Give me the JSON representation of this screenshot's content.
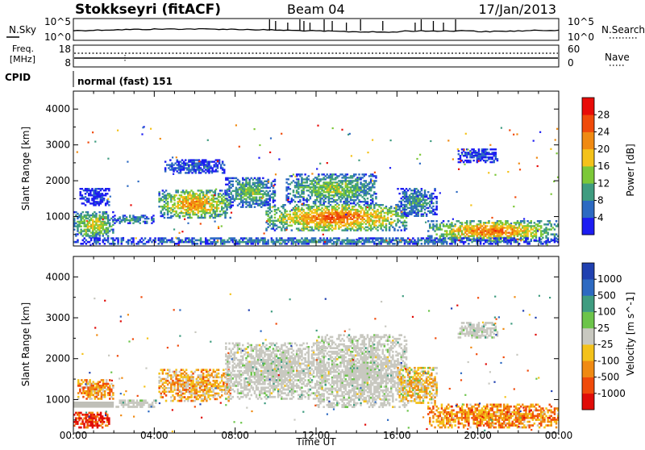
{
  "header": {
    "station": "Stokkseyri (fitACF)",
    "beam": "Beam 04",
    "date": "17/Jan/2013"
  },
  "noise_panel": {
    "left_label": "N.Sky",
    "right_label": "N.Search",
    "left_ticks": [
      "10^5",
      "10^0"
    ],
    "right_ticks": [
      "10^5",
      "10^0"
    ]
  },
  "freq_panel": {
    "left_label_line1": "Freq.",
    "left_label_line2": "[MHz]",
    "left_ticks": [
      "18",
      "8"
    ],
    "right_label": "Nave",
    "right_ticks": [
      "60",
      "0"
    ]
  },
  "cpid": {
    "label": "CPID",
    "value": "normal (fast) 151"
  },
  "chart_data": [
    {
      "type": "heatmap",
      "name": "Power",
      "ylabel": "Slant Range [km]",
      "ylim": [
        180,
        4500
      ],
      "yticks": [
        "1000",
        "2000",
        "3000",
        "4000"
      ],
      "xlim_hours": [
        0,
        24
      ],
      "xtick_labels": [
        "00:00",
        "04:00",
        "08:00",
        "12:00",
        "16:00",
        "20:00",
        "00:00"
      ],
      "colorbar": {
        "label": "Power [dB]",
        "range": [
          0,
          32
        ],
        "tick_labels": [
          "4",
          "8",
          "12",
          "16",
          "20",
          "24",
          "28"
        ],
        "colors": [
          "#1c1cf2",
          "#2d6ac2",
          "#3f9c80",
          "#7cc838",
          "#f4c21a",
          "#f08a12",
          "#f04a0a",
          "#e80c08"
        ]
      },
      "regions": [
        {
          "t0": 0.0,
          "t1": 2.0,
          "r0": 400,
          "r1": 1150,
          "level": 0.6
        },
        {
          "t0": 0.3,
          "t1": 1.8,
          "r0": 1300,
          "r1": 1800,
          "level": 0.1
        },
        {
          "t0": 2.0,
          "t1": 4.0,
          "r0": 800,
          "r1": 1050,
          "level": 0.35
        },
        {
          "t0": 4.2,
          "t1": 7.8,
          "r0": 950,
          "r1": 1750,
          "level": 0.75
        },
        {
          "t0": 4.5,
          "t1": 7.5,
          "r0": 2200,
          "r1": 2600,
          "level": 0.2
        },
        {
          "t0": 7.5,
          "t1": 10.0,
          "r0": 1250,
          "r1": 2100,
          "level": 0.45
        },
        {
          "t0": 9.5,
          "t1": 16.5,
          "r0": 600,
          "r1": 1350,
          "level": 0.85
        },
        {
          "t0": 10.5,
          "t1": 15.0,
          "r0": 1350,
          "r1": 2200,
          "level": 0.5
        },
        {
          "t0": 16.0,
          "t1": 18.0,
          "r0": 1000,
          "r1": 1800,
          "level": 0.35
        },
        {
          "t0": 17.5,
          "t1": 24.0,
          "r0": 300,
          "r1": 900,
          "level": 0.8
        },
        {
          "t0": 19.0,
          "t1": 21.0,
          "r0": 2500,
          "r1": 2900,
          "level": 0.15
        },
        {
          "t0": 0.0,
          "t1": 24.0,
          "r0": 220,
          "r1": 420,
          "level": 0.3
        }
      ]
    },
    {
      "type": "heatmap",
      "name": "Velocity",
      "ylabel": "Slant Range [km]",
      "ylim": [
        180,
        4500
      ],
      "yticks": [
        "1000",
        "2000",
        "3000",
        "4000"
      ],
      "xlim_hours": [
        0,
        24
      ],
      "xtick_labels": [
        "00:00",
        "04:00",
        "08:00",
        "12:00",
        "16:00",
        "20:00",
        "00:00"
      ],
      "xlabel": "Time UT",
      "colorbar": {
        "label": "Velocity [m s^-1]",
        "tick_labels": [
          "1000",
          "500",
          "100",
          "25",
          "-25",
          "-100",
          "-500",
          "-1000"
        ],
        "colors": [
          "#2040b0",
          "#2d6ac2",
          "#3f9c80",
          "#6cc44a",
          "#c8c8c0",
          "#f4c21a",
          "#f08a12",
          "#f04a0a",
          "#e00c08"
        ]
      },
      "ground_color": "#bfbfb8",
      "regions": [
        {
          "t0": 0.0,
          "t1": 1.8,
          "r0": 300,
          "r1": 700,
          "level": 0.9
        },
        {
          "t0": 0.2,
          "t1": 2.0,
          "r0": 1000,
          "r1": 1500,
          "level": 0.7
        },
        {
          "t0": 2.0,
          "t1": 4.2,
          "r0": 800,
          "r1": 1000,
          "level": 0.45
        },
        {
          "t0": 4.2,
          "t1": 7.8,
          "r0": 950,
          "r1": 1750,
          "level": 0.65
        },
        {
          "t0": 7.5,
          "t1": 12.5,
          "r0": 1000,
          "r1": 2400,
          "level": 0.45
        },
        {
          "t0": 12.0,
          "t1": 16.5,
          "r0": 800,
          "r1": 2600,
          "level": 0.45
        },
        {
          "t0": 16.0,
          "t1": 18.0,
          "r0": 900,
          "r1": 1800,
          "level": 0.6
        },
        {
          "t0": 17.5,
          "t1": 24.0,
          "r0": 300,
          "r1": 900,
          "level": 0.72
        },
        {
          "t0": 19.0,
          "t1": 21.0,
          "r0": 2500,
          "r1": 2900,
          "level": 0.45
        }
      ]
    }
  ]
}
